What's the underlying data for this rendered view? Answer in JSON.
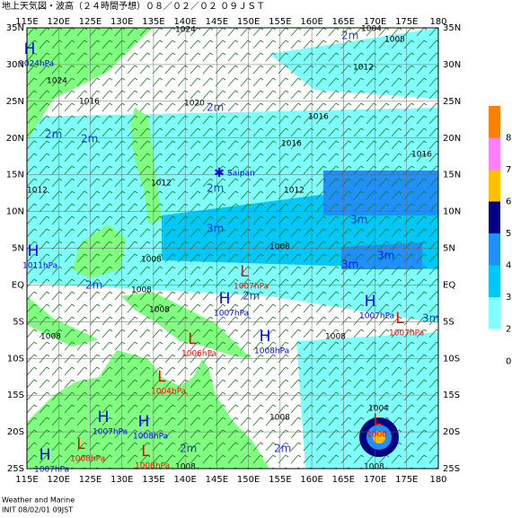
{
  "header": {
    "title": "地上天気図・波高（２４時間予想）０８／０２／０２ ０９ＪＳＴ"
  },
  "longitudes": [
    "115E",
    "120E",
    "125E",
    "130E",
    "135E",
    "140E",
    "145E",
    "150E",
    "155E",
    "160E",
    "165E",
    "170E",
    "175E",
    "180"
  ],
  "latitudes": [
    "35N",
    "30N",
    "25N",
    "20N",
    "15N",
    "10N",
    "5N",
    "EQ",
    "5S",
    "10S",
    "15S",
    "20S",
    "25S"
  ],
  "legend": {
    "levels": [
      {
        "label": "8",
        "color": "#ff8000"
      },
      {
        "label": "7",
        "color": "#ff80ff"
      },
      {
        "label": "6",
        "color": "#ffc000"
      },
      {
        "label": "5",
        "color": "#000080"
      },
      {
        "label": "4",
        "color": "#2090ff"
      },
      {
        "label": "3",
        "color": "#00c8ff"
      },
      {
        "label": "2",
        "color": "#80ffff"
      }
    ],
    "zero": "0"
  },
  "systems": [
    {
      "mark": "H",
      "pressure": "1024hPa",
      "kind": "high"
    },
    {
      "mark": "H",
      "pressure": "1011hPa",
      "kind": "high"
    },
    {
      "mark": "L",
      "pressure": "1007hPa",
      "kind": "low"
    },
    {
      "mark": "H",
      "pressure": "1007hPa",
      "kind": "high"
    },
    {
      "mark": "H",
      "pressure": "1007hPa",
      "kind": "high"
    },
    {
      "mark": "L",
      "pressure": "1007hPa",
      "kind": "low"
    },
    {
      "mark": "L",
      "pressure": "1006hPa",
      "kind": "low"
    },
    {
      "mark": "H",
      "pressure": "1008hPa",
      "kind": "high"
    },
    {
      "mark": "L",
      "pressure": "1004hPa",
      "kind": "low"
    },
    {
      "mark": "H",
      "pressure": "1007hPa",
      "kind": "high"
    },
    {
      "mark": "L",
      "pressure": "1008hPa",
      "kind": "low"
    },
    {
      "mark": "H",
      "pressure": "1008hPa",
      "kind": "high"
    },
    {
      "mark": "L",
      "pressure": "1008hPa",
      "kind": "low"
    },
    {
      "mark": "H",
      "pressure": "1007hPa",
      "kind": "high"
    },
    {
      "mark": "L",
      "pressure": "1000",
      "kind": "low"
    }
  ],
  "isobars": [
    "1024",
    "1016",
    "1020",
    "1016",
    "1016",
    "1016",
    "1012",
    "1012",
    "1012",
    "1012",
    "1008",
    "1008",
    "1008",
    "1008",
    "1008",
    "1008",
    "1008",
    "1004",
    "1004",
    "1008",
    "1024",
    "1008",
    "1008"
  ],
  "waves": [
    "2m",
    "2m",
    "2m",
    "2m",
    "3m",
    "3m",
    "3m",
    "3m",
    "2m",
    "2m",
    "2m",
    "2m",
    "3m",
    "2m"
  ],
  "place": "Saipan",
  "footer": {
    "line1": "Weather and Marine",
    "line2": "INIT 08/02/01 09JST"
  }
}
